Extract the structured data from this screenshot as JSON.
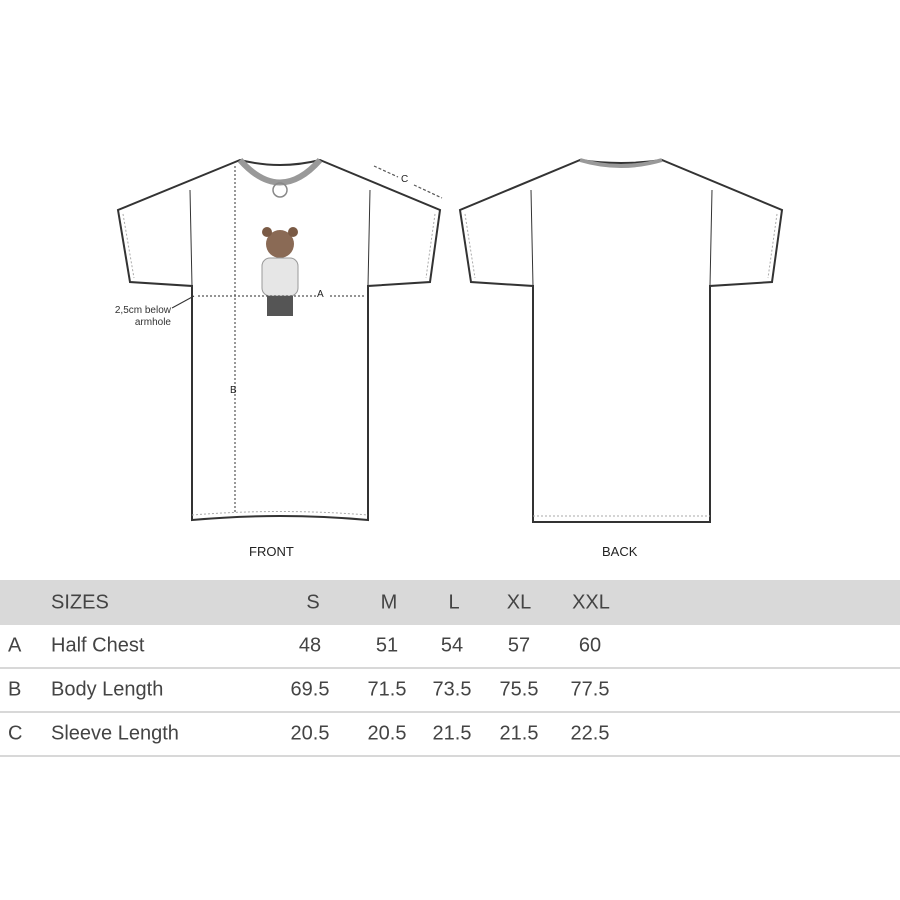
{
  "diagram": {
    "front_label": "FRONT",
    "back_label": "BACK",
    "measure_a": "A",
    "measure_b": "B",
    "measure_c": "C",
    "note_line1": "2,5cm below",
    "note_line2": "armhole"
  },
  "table": {
    "header": {
      "title": "SIZES",
      "sizes": [
        "S",
        "M",
        "L",
        "XL",
        "XXL"
      ]
    },
    "rows": [
      {
        "code": "A",
        "name": "Half Chest",
        "values": [
          "48",
          "51",
          "54",
          "57",
          "60"
        ]
      },
      {
        "code": "B",
        "name": "Body Length",
        "values": [
          "69.5",
          "71.5",
          "73.5",
          "75.5",
          "77.5"
        ]
      },
      {
        "code": "C",
        "name": "Sleeve Length",
        "values": [
          "20.5",
          "20.5",
          "21.5",
          "21.5",
          "22.5"
        ]
      }
    ],
    "header_color": "#d9d9d9"
  }
}
